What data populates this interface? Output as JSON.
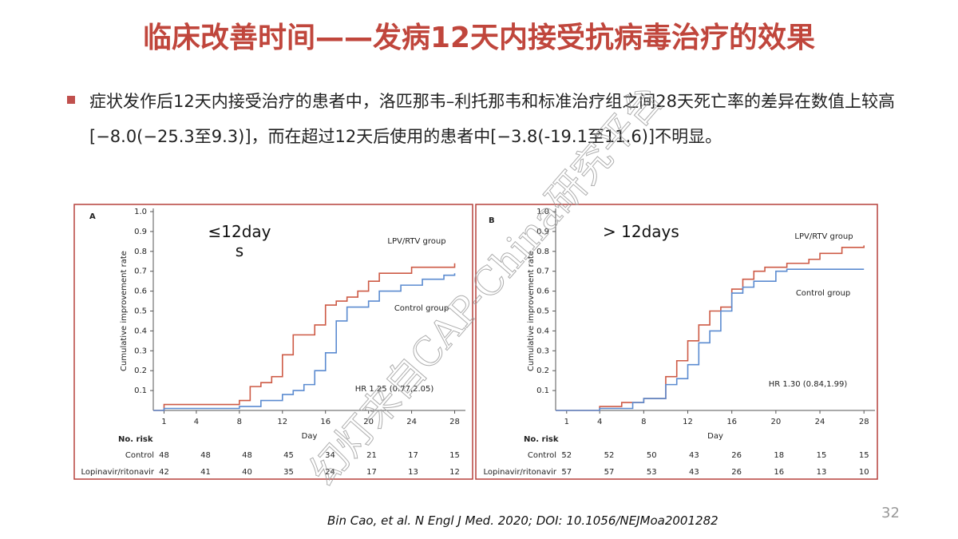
{
  "slide": {
    "title": "临床改善时间——发病12天内接受抗病毒治疗的效果",
    "bullet": "症状发作后12天内接受治疗的患者中，洛匹那韦–利托那韦和标准治疗组之间28天死亡率的差异在数值上较高[−8.0(−25.3至9.3)]，而在超过12天后使用的患者中[−3.8(-19.1至11.6)]不明显。",
    "citation": "Bin Cao, et al. N Engl J Med. 2020; DOI: 10.1056/NEJMoa2001282",
    "page_number": "32",
    "watermark": "幻灯来自CAP-China研究平台"
  },
  "chart_data": [
    {
      "type": "line",
      "step": true,
      "panel_label": "A",
      "annotation": "≤12days",
      "xlabel": "Day",
      "ylabel": "Cumulative improvement rate",
      "hr_text": "HR 1.25 (0.77,2.05)",
      "xlim": [
        0,
        29
      ],
      "xticks": [
        1,
        4,
        8,
        12,
        16,
        20,
        24,
        28
      ],
      "ylim": [
        0,
        1
      ],
      "yticks": [
        0.1,
        0.2,
        0.3,
        0.4,
        0.5,
        0.6,
        0.7,
        0.8,
        0.9,
        {
          "value": 1,
          "label": "1.0"
        }
      ],
      "series": [
        {
          "name": "LPV/RTV group",
          "color": "#cd5a45",
          "x": [
            0,
            1,
            8,
            9,
            10,
            11,
            12,
            13,
            15,
            16,
            17,
            18,
            19,
            20,
            21,
            24,
            28
          ],
          "values": [
            0,
            0.03,
            0.05,
            0.12,
            0.14,
            0.17,
            0.28,
            0.38,
            0.43,
            0.53,
            0.55,
            0.57,
            0.6,
            0.65,
            0.69,
            0.72,
            0.74
          ]
        },
        {
          "name": "Control group",
          "color": "#5b8bd0",
          "x": [
            0,
            1,
            8,
            10,
            12,
            13,
            14,
            15,
            16,
            17,
            18,
            20,
            21,
            23,
            25,
            27,
            28
          ],
          "values": [
            0,
            0.01,
            0.02,
            0.05,
            0.08,
            0.1,
            0.13,
            0.2,
            0.29,
            0.45,
            0.52,
            0.55,
            0.6,
            0.63,
            0.66,
            0.68,
            0.69
          ]
        }
      ],
      "risk_table": {
        "title": "No. risk",
        "rows": [
          {
            "name": "Control",
            "values": [
              48,
              48,
              48,
              45,
              34,
              21,
              17,
              15
            ]
          },
          {
            "name": "Lopinavir/ritonavir",
            "values": [
              42,
              41,
              40,
              35,
              24,
              17,
              13,
              12
            ]
          }
        ]
      }
    },
    {
      "type": "line",
      "step": true,
      "panel_label": "B",
      "annotation": "> 12days",
      "xlabel": "Day",
      "ylabel": "Cumulative improvement rate",
      "hr_text": "HR 1.30 (0.84,1.99)",
      "xlim": [
        0,
        29
      ],
      "xticks": [
        1,
        4,
        8,
        12,
        16,
        20,
        24,
        28
      ],
      "ylim": [
        0,
        1
      ],
      "yticks": [
        0.1,
        0.2,
        0.3,
        0.4,
        0.5,
        0.6,
        0.7,
        0.8,
        0.9,
        {
          "value": 1,
          "label": "1.0"
        }
      ],
      "series": [
        {
          "name": "LPV/RTV group",
          "color": "#cd5a45",
          "x": [
            0,
            4,
            6,
            8,
            10,
            11,
            12,
            13,
            14,
            15,
            16,
            17,
            18,
            19,
            21,
            23,
            24,
            26,
            28
          ],
          "values": [
            0,
            0.02,
            0.04,
            0.06,
            0.17,
            0.25,
            0.35,
            0.43,
            0.5,
            0.52,
            0.61,
            0.66,
            0.7,
            0.72,
            0.74,
            0.76,
            0.79,
            0.82,
            0.83
          ]
        },
        {
          "name": "Control group",
          "color": "#5b8bd0",
          "x": [
            0,
            4,
            7,
            8,
            10,
            11,
            12,
            13,
            14,
            15,
            16,
            17,
            18,
            20,
            21,
            28
          ],
          "values": [
            0,
            0.01,
            0.04,
            0.06,
            0.13,
            0.16,
            0.23,
            0.34,
            0.4,
            0.5,
            0.59,
            0.62,
            0.65,
            0.7,
            0.71,
            0.71
          ]
        }
      ],
      "risk_table": {
        "title": "No. risk",
        "rows": [
          {
            "name": "Control",
            "values": [
              52,
              52,
              50,
              43,
              26,
              18,
              15,
              15
            ]
          },
          {
            "name": "Lopinavir/ritonavir",
            "values": [
              57,
              57,
              53,
              43,
              26,
              16,
              13,
              10
            ]
          }
        ]
      }
    }
  ]
}
